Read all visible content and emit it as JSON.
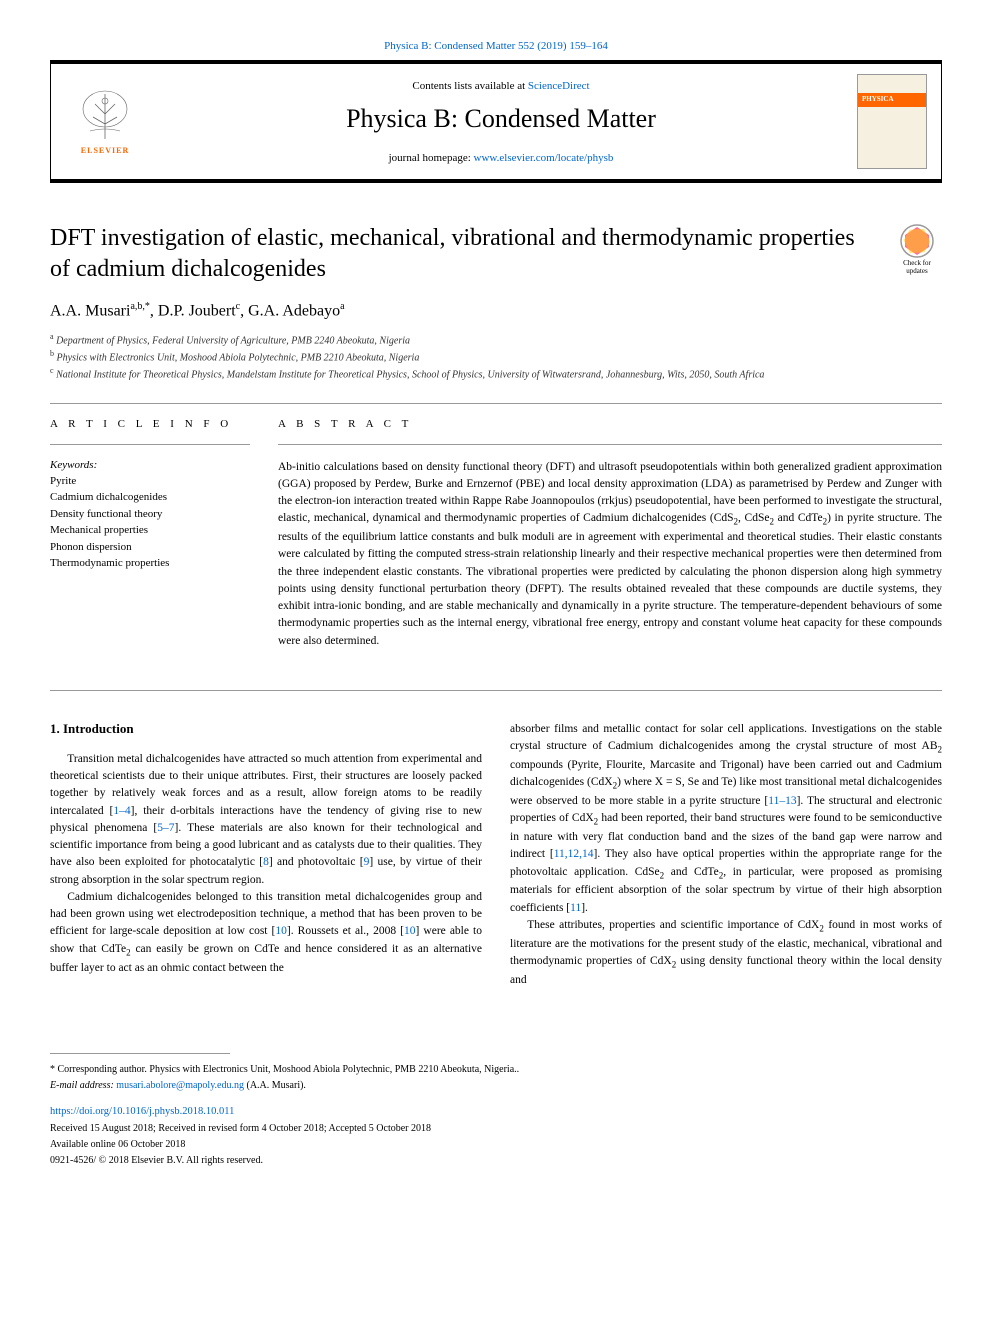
{
  "top_citation": {
    "prefix": "",
    "link_text": "Physica B: Condensed Matter 552 (2019) 159–164"
  },
  "header": {
    "contents_prefix": "Contents lists available at ",
    "contents_link": "ScienceDirect",
    "journal_name": "Physica B: Condensed Matter",
    "homepage_prefix": "journal homepage: ",
    "homepage_link": "www.elsevier.com/locate/physb",
    "elsevier_label": "ELSEVIER",
    "cover_band": "PHYSICA"
  },
  "check_updates": {
    "line1": "Check for",
    "line2": "updates"
  },
  "title": "DFT investigation of elastic, mechanical, vibrational and thermodynamic properties of cadmium dichalcogenides",
  "authors_html": "A.A. Musari<sup>a,b,*</sup>, D.P. Joubert<sup>c</sup>, G.A. Adebayo<sup>a</sup>",
  "affiliations": [
    {
      "sup": "a",
      "text": "Department of Physics, Federal University of Agriculture, PMB 2240 Abeokuta, Nigeria"
    },
    {
      "sup": "b",
      "text": "Physics with Electronics Unit, Moshood Abiola Polytechnic, PMB 2210 Abeokuta, Nigeria"
    },
    {
      "sup": "c",
      "text": "National Institute for Theoretical Physics, Mandelstam Institute for Theoretical Physics, School of Physics, University of Witwatersrand, Johannesburg, Wits, 2050, South Africa"
    }
  ],
  "article_info": {
    "heading": "A R T I C L E  I N F O",
    "keywords_label": "Keywords:",
    "keywords": [
      "Pyrite",
      "Cadmium dichalcogenides",
      "Density functional theory",
      "Mechanical properties",
      "Phonon dispersion",
      "Thermodynamic properties"
    ]
  },
  "abstract": {
    "heading": "A B S T R A C T",
    "text": "Ab-initio calculations based on density functional theory (DFT) and ultrasoft pseudopotentials within both generalized gradient approximation (GGA) proposed by Perdew, Burke and Ernzernof (PBE) and local density approximation (LDA) as parametrised by Perdew and Zunger with the electron-ion interaction treated within Rappe Rabe Joannopoulos (rrkjus) pseudopotential, have been performed to investigate the structural, elastic, mechanical, dynamical and thermodynamic properties of Cadmium dichalcogenides (CdS₂, CdSe₂ and CdTe₂) in pyrite structure. The results of the equilibrium lattice constants and bulk moduli are in agreement with experimental and theoretical studies. Their elastic constants were calculated by fitting the computed stress-strain relationship linearly and their respective mechanical properties were then determined from the three independent elastic constants. The vibrational properties were predicted by calculating the phonon dispersion along high symmetry points using density functional perturbation theory (DFPT). The results obtained revealed that these compounds are ductile systems, they exhibit intra-ionic bonding, and are stable mechanically and dynamically in a pyrite structure. The temperature-dependent behaviours of some thermodynamic properties such as the internal energy, vibrational free energy, entropy and constant volume heat capacity for these compounds were also determined."
  },
  "section1": {
    "heading": "1. Introduction",
    "left_paragraphs": [
      "Transition metal dichalcogenides have attracted so much attention from experimental and theoretical scientists due to their unique attributes. First, their structures are loosely packed together by relatively weak forces and as a result, allow foreign atoms to be readily intercalated [1–4], their d-orbitals interactions have the tendency of giving rise to new physical phenomena [5–7]. These materials are also known for their technological and scientific importance from being a good lubricant and as catalysts due to their qualities. They have also been exploited for photocatalytic [8] and photovoltaic [9] use, by virtue of their strong absorption in the solar spectrum region.",
      "Cadmium dichalcogenides belonged to this transition metal dichalcogenides group and had been grown using wet electrodeposition technique, a method that has been proven to be efficient for large-scale deposition at low cost [10]. Roussets et al., 2008 [10] were able to show that CdTe₂ can easily be grown on CdTe and hence considered it as an alternative buffer layer to act as an ohmic contact between the"
    ],
    "right_paragraphs": [
      "absorber films and metallic contact for solar cell applications. Investigations on the stable crystal structure of Cadmium dichalcogenides among the crystal structure of most AB₂ compounds (Pyrite, Flourite, Marcasite and Trigonal) have been carried out and Cadmium dichalcogenides (CdX₂) where X = S, Se and Te) like most transitional metal dichalcogenides were observed to be more stable in a pyrite structure [11–13]. The structural and electronic properties of CdX₂ had been reported, their band structures were found to be semiconductive in nature with very flat conduction band and the sizes of the band gap were narrow and indirect [11,12,14]. They also have optical properties within the appropriate range for the photovoltaic application. CdSe₂ and CdTe₂, in particular, were proposed as promising materials for efficient absorption of the solar spectrum by virtue of their high absorption coefficients [11].",
      "These attributes, properties and scientific importance of CdX₂ found in most works of literature are the motivations for the present study of the elastic, mechanical, vibrational and thermodynamic properties of CdX₂ using density functional theory within the local density and"
    ],
    "citations": {
      "c1": "1–4",
      "c2": "5–7",
      "c3": "8",
      "c4": "9",
      "c5": "10",
      "c6": "10",
      "c7": "11–13",
      "c8": "11",
      "c9": "12",
      "c10": "14",
      "c11": "11"
    }
  },
  "footer": {
    "corresponding": "* Corresponding author. Physics with Electronics Unit, Moshood Abiola Polytechnic, PMB 2210 Abeokuta, Nigeria..",
    "email_label": "E-mail address: ",
    "email": "musari.abolore@mapoly.edu.ng",
    "email_suffix": " (A.A. Musari).",
    "doi": "https://doi.org/10.1016/j.physb.2018.10.011",
    "received": "Received 15 August 2018; Received in revised form 4 October 2018; Accepted 5 October 2018",
    "available": "Available online 06 October 2018",
    "copyright": "0921-4526/ © 2018 Elsevier B.V. All rights reserved."
  },
  "colors": {
    "link": "#0066cc",
    "elsevier_orange": "#ff6600",
    "rule": "#999999"
  }
}
